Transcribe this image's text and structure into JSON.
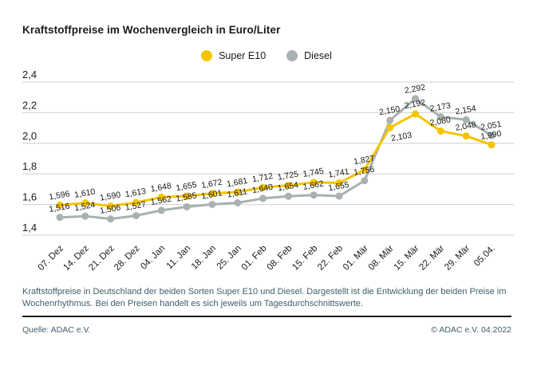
{
  "page": {
    "title": "Kraftstoffpreise im Wochenvergleich in Euro/Liter",
    "description": "Kraftstoffpreise in Deutschland der beiden Sorten Super E10 und Diesel. Dargestellt ist die Entwicklung der beiden Preise im Wochenrhythmus. Bei den Preisen handelt es sich jeweils um Tagesdurchschnittswerte.",
    "source": "Quelle: ADAC e.V.",
    "copyright": "© ADAC e.V. 04.2022"
  },
  "colors": {
    "super_e10": "#f5c400",
    "diesel": "#a9b1b2",
    "grid": "#d9d9d9",
    "label_text": "#1a1a1a",
    "muted_text": "#3f5e6b"
  },
  "chart_data": {
    "type": "line",
    "title": "Kraftstoffpreise im Wochenvergleich in Euro/Liter",
    "xlabel": "",
    "ylabel": "Euro/Liter",
    "ylim": [
      1.4,
      2.4
    ],
    "ytick_labels": [
      "2,4",
      "2,2",
      "2,0",
      "1,8",
      "1,6",
      "1,4"
    ],
    "grid": true,
    "legend_position": "top-center",
    "categories": [
      "07. Dez",
      "14. Dez",
      "21. Dez",
      "28. Dez",
      "04. Jan",
      "11. Jan",
      "18. Jan",
      "25. Jan",
      "01. Feb",
      "08. Feb",
      "15. Feb",
      "22. Feb",
      "01. Mär",
      "08. Mär",
      "15. Mär",
      "22. Mär",
      "29. Mär",
      "05.04."
    ],
    "series": [
      {
        "name": "Super E10",
        "color_key": "super_e10",
        "values": [
          1.596,
          1.61,
          1.59,
          1.613,
          1.648,
          1.655,
          1.672,
          1.681,
          1.712,
          1.725,
          1.745,
          1.741,
          1.827,
          2.103,
          2.192,
          2.08,
          2.048,
          1.99
        ],
        "labels": [
          "1,596",
          "1,610",
          "1,590",
          "1,613",
          "1,648",
          "1,655",
          "1,672",
          "1,681",
          "1,712",
          "1,725",
          "1,745",
          "1,741",
          "1,827",
          "2,103",
          "2,192",
          "2,080",
          "2,048",
          "1,990"
        ]
      },
      {
        "name": "Diesel",
        "color_key": "diesel",
        "values": [
          1.516,
          1.524,
          1.506,
          1.527,
          1.562,
          1.585,
          1.601,
          1.611,
          1.64,
          1.654,
          1.662,
          1.655,
          1.756,
          2.15,
          2.292,
          2.173,
          2.154,
          2.051
        ],
        "labels": [
          "1,516",
          "1,524",
          "1,506",
          "1,527",
          "1,562",
          "1,585",
          "1,601",
          "1,611",
          "1,640",
          "1,654",
          "1,662",
          "1,655",
          "1,756",
          "2,150",
          "2,292",
          "2,173",
          "2,154",
          "2,051"
        ]
      }
    ],
    "label_below": [
      {
        "series": 0,
        "index": 13
      }
    ]
  }
}
